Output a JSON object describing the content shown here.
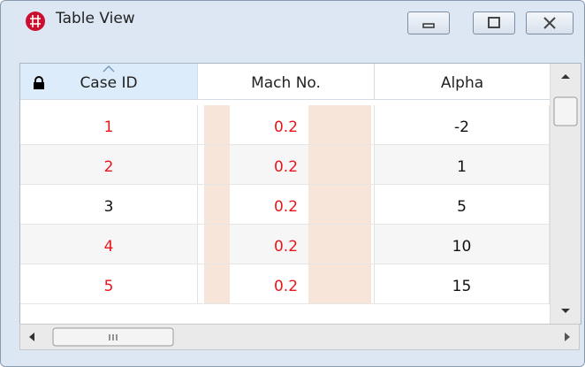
{
  "window": {
    "title": "Table View"
  },
  "table": {
    "columns": [
      "Case ID",
      "Mach No.",
      "Alpha"
    ],
    "rows": [
      [
        1,
        0.2,
        -2
      ],
      [
        2,
        0.2,
        1
      ],
      [
        3,
        0.2,
        5
      ],
      [
        4,
        0.2,
        10
      ],
      [
        5,
        0.2,
        15
      ]
    ]
  }
}
